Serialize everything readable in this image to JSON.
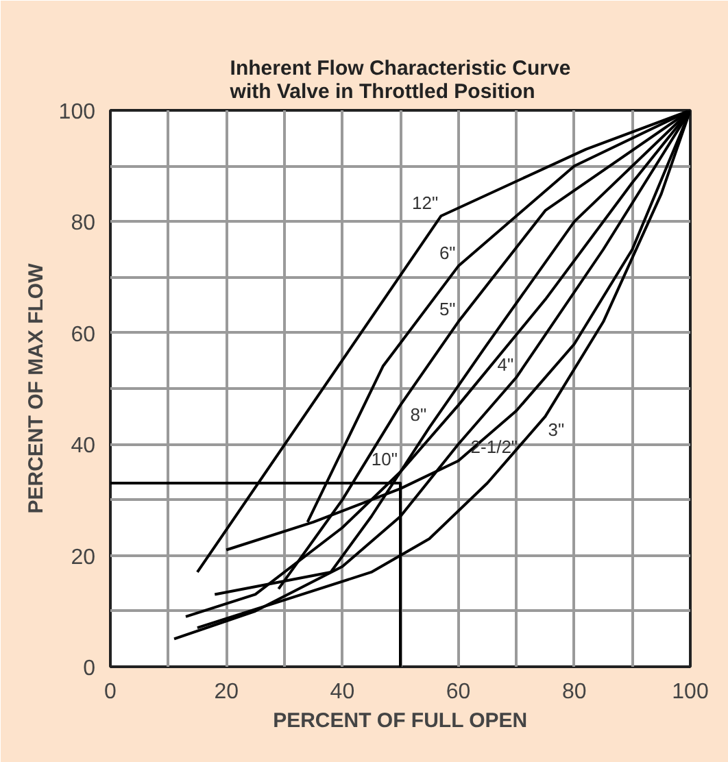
{
  "chart_data": {
    "type": "line",
    "title": "Inherent Flow Characteristic Curve\nwith Valve in Throttled Position",
    "xlabel": "PERCENT OF FULL OPEN",
    "ylabel": "PERCENT OF MAX FLOW",
    "xlim": [
      0,
      100
    ],
    "ylim": [
      0,
      100
    ],
    "xticks": [
      0,
      20,
      40,
      60,
      80,
      100
    ],
    "yticks": [
      0,
      20,
      40,
      60,
      80,
      100
    ],
    "grid": true,
    "legend": false,
    "marker": "none",
    "line_style": "solid",
    "series": [
      {
        "name": "12\"",
        "color": "#000000",
        "x": [
          15,
          57,
          82,
          100
        ],
        "values": [
          17,
          81,
          93,
          100
        ]
      },
      {
        "name": "6\"",
        "color": "#000000",
        "x": [
          34,
          47,
          60,
          80,
          100
        ],
        "values": [
          26,
          54,
          72,
          90,
          100
        ]
      },
      {
        "name": "5\"",
        "color": "#000000",
        "x": [
          29,
          40,
          50,
          60,
          75,
          100
        ],
        "values": [
          14,
          30,
          47,
          62,
          82,
          100
        ]
      },
      {
        "name": "8\"",
        "color": "#000000",
        "x": [
          18,
          38,
          45,
          55,
          65,
          80,
          100
        ],
        "values": [
          13,
          17,
          27,
          43,
          58,
          80,
          100
        ]
      },
      {
        "name": "10\"",
        "color": "#000000",
        "x": [
          13,
          25,
          40,
          50,
          60,
          75,
          90,
          100
        ],
        "values": [
          9,
          13,
          25,
          35,
          47,
          66,
          87,
          100
        ]
      },
      {
        "name": "4\"",
        "color": "#000000",
        "x": [
          11,
          25,
          40,
          50,
          60,
          70,
          85,
          100
        ],
        "values": [
          5,
          10,
          18,
          27,
          40,
          52,
          75,
          100
        ]
      },
      {
        "name": "3\"",
        "color": "#000000",
        "x": [
          15,
          30,
          45,
          55,
          65,
          75,
          85,
          95,
          100
        ],
        "values": [
          7,
          12,
          17,
          23,
          33,
          45,
          62,
          85,
          100
        ]
      },
      {
        "name": "2-1/2\"",
        "color": "#000000",
        "x": [
          20,
          35,
          50,
          60,
          70,
          80,
          90,
          100
        ],
        "values": [
          21,
          26,
          32,
          37,
          46,
          58,
          75,
          100
        ]
      },
      {
        "color": "#000000",
        "x": [
          0,
          50,
          50
        ],
        "values": [
          33,
          33,
          0
        ]
      }
    ]
  }
}
